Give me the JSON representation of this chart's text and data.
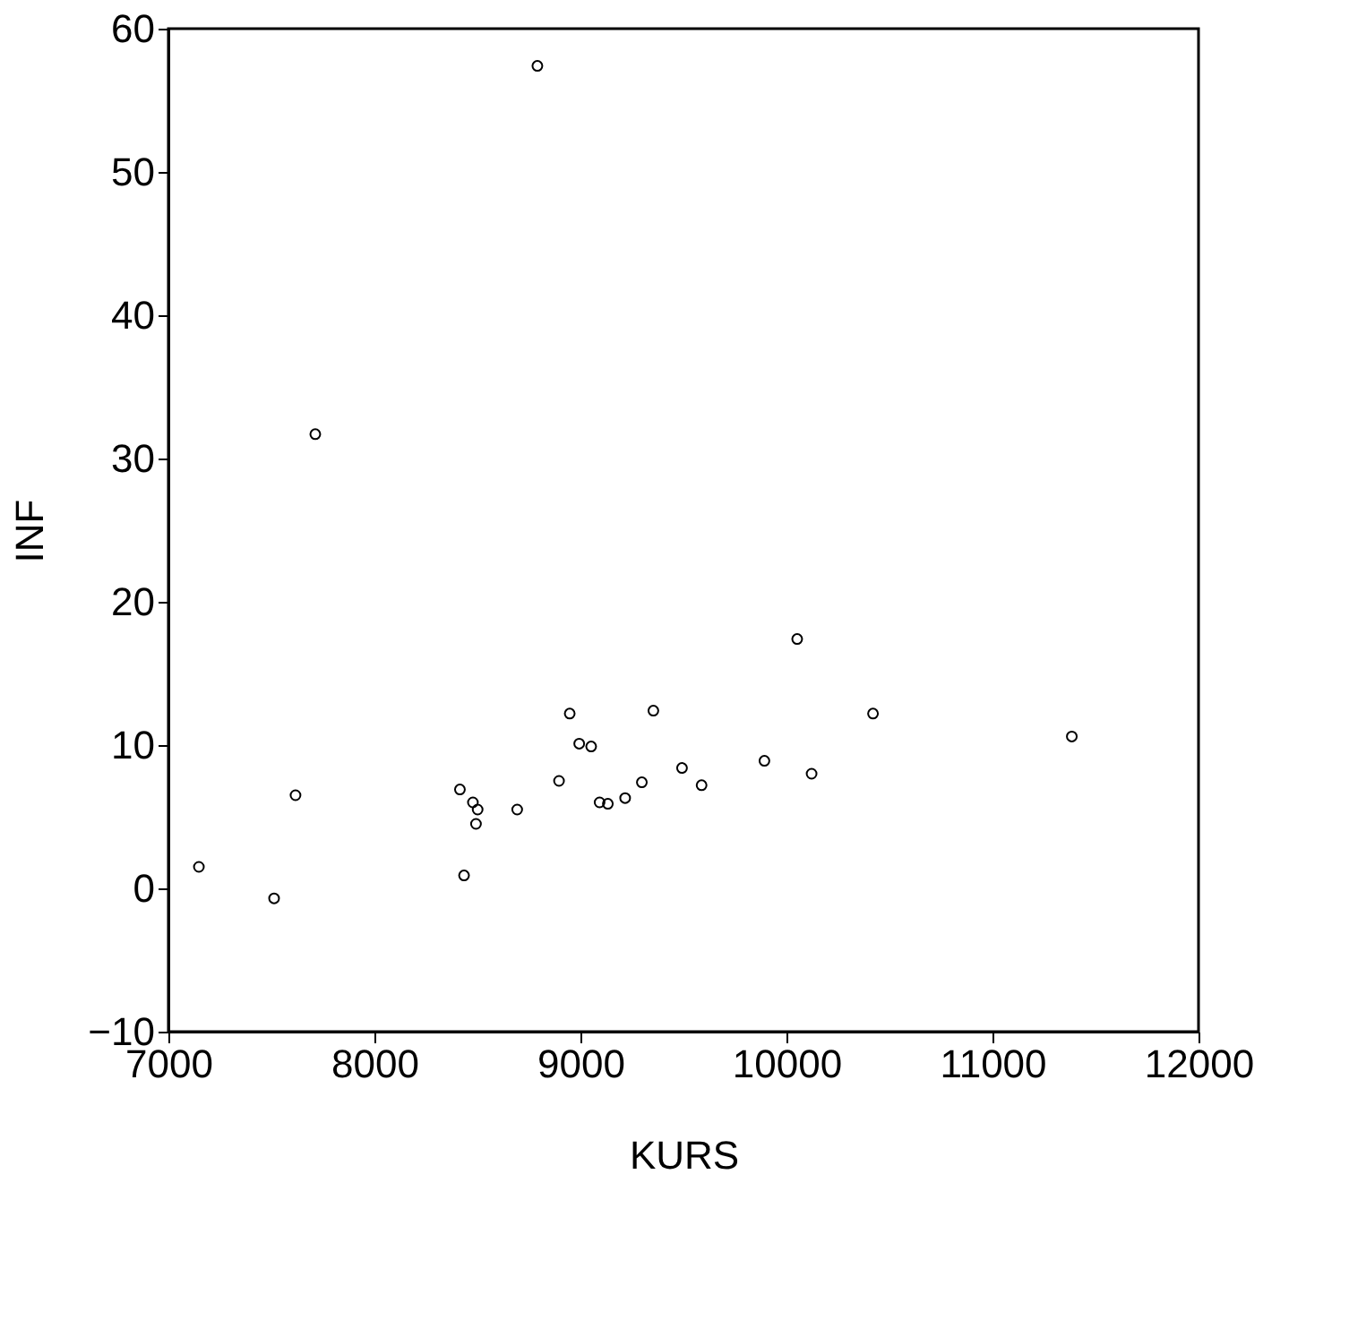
{
  "chart_data": {
    "type": "scatter",
    "xlabel": "KURS",
    "ylabel": "INF",
    "x": [
      7148,
      7513,
      7617,
      7713,
      8791,
      8415,
      8478,
      8501,
      8493,
      8435,
      8693,
      8896,
      8948,
      8994,
      9052,
      9093,
      9133,
      9217,
      9298,
      9354,
      9493,
      9588,
      9893,
      10052,
      10122,
      10420,
      11385
    ],
    "series": [
      {
        "color": "#000000",
        "values": [
          1.5,
          -0.7,
          6.5,
          31.7,
          57.4,
          6.9,
          6.0,
          5.5,
          4.5,
          0.9,
          5.5,
          7.5,
          12.2,
          10.1,
          9.9,
          6.0,
          5.9,
          6.3,
          7.4,
          12.4,
          8.4,
          7.2,
          8.9,
          17.4,
          8.0,
          12.2,
          10.6
        ]
      }
    ],
    "xlim": [
      7000,
      12000
    ],
    "xticks": [
      7000,
      8000,
      9000,
      10000,
      11000,
      12000
    ],
    "ylim": [
      -10,
      60
    ],
    "yticks": [
      -10,
      0,
      10,
      20,
      30,
      40,
      50,
      60
    ],
    "grid": false,
    "marker": "circle"
  }
}
